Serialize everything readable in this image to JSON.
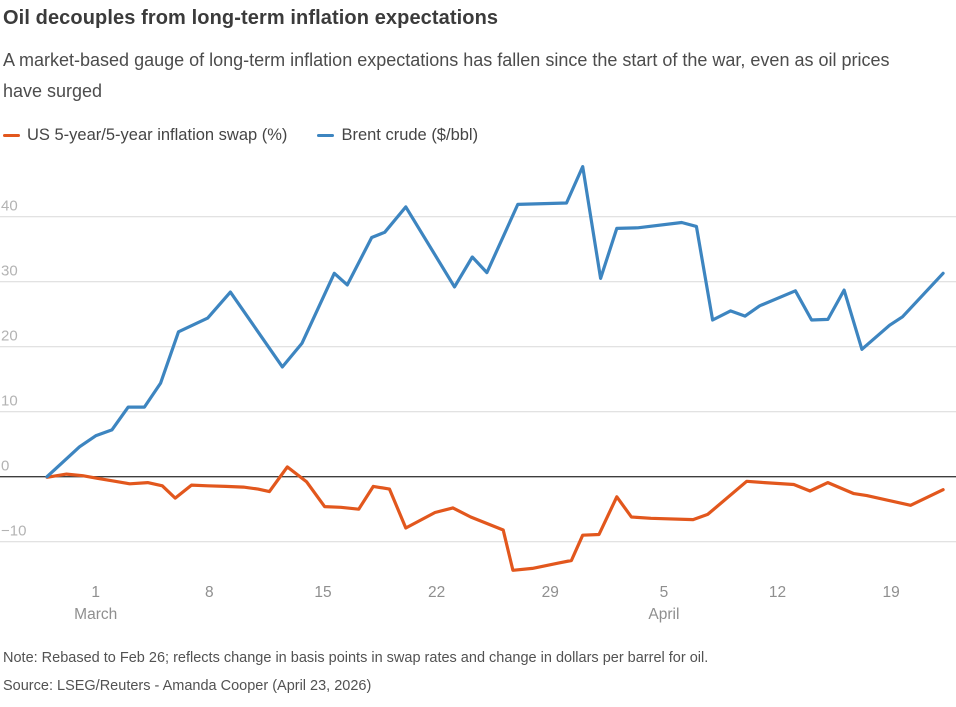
{
  "header": {
    "title": "Oil decouples from long-term inflation expectations",
    "subtitle": "A market-based gauge of long-term inflation expectations has fallen since the start of the war, even as oil prices have surged"
  },
  "legend": [
    {
      "label": "US 5-year/5-year inflation swap (%)",
      "color": "#e2571d"
    },
    {
      "label": "Brent crude ($/bbl)",
      "color": "#3d85c0"
    }
  ],
  "chart_data": {
    "type": "line",
    "title": "Oil decouples from long-term inflation expectations",
    "x_unit": "days since Feb 26 rebase date",
    "x_axis": {
      "ticks": [
        {
          "day": 3,
          "label": "1"
        },
        {
          "day": 10,
          "label": "8"
        },
        {
          "day": 17,
          "label": "15"
        },
        {
          "day": 24,
          "label": "22"
        },
        {
          "day": 31,
          "label": "29"
        },
        {
          "day": 38,
          "label": "5"
        },
        {
          "day": 45,
          "label": "12"
        },
        {
          "day": 52,
          "label": "19"
        }
      ],
      "month_labels": [
        {
          "day": 3,
          "label": "March"
        },
        {
          "day": 38,
          "label": "April"
        }
      ]
    },
    "y_axis": {
      "ticks": [
        {
          "value": 40,
          "label": "40"
        },
        {
          "value": 30,
          "label": "30"
        },
        {
          "value": 20,
          "label": "20"
        },
        {
          "value": 10,
          "label": "10"
        },
        {
          "value": 0,
          "label": "0"
        },
        {
          "value": -10,
          "label": "−10"
        }
      ],
      "range": [
        -15.5,
        48.5
      ],
      "grid": true,
      "zero_line": true
    },
    "series": [
      {
        "name": "US 5-year/5-year inflation swap (%)",
        "color": "#e2571d",
        "points": [
          [
            0,
            -0.1
          ],
          [
            1.2,
            0.4
          ],
          [
            2.2,
            0.15
          ],
          [
            3.1,
            -0.25
          ],
          [
            4.2,
            -0.7
          ],
          [
            5.1,
            -1.1
          ],
          [
            6.2,
            -0.9
          ],
          [
            7.1,
            -1.4
          ],
          [
            7.9,
            -3.3
          ],
          [
            8.9,
            -1.3
          ],
          [
            9.9,
            -1.4
          ],
          [
            11,
            -1.5
          ],
          [
            12.1,
            -1.6
          ],
          [
            13,
            -1.9
          ],
          [
            13.7,
            -2.3
          ],
          [
            14.8,
            1.5
          ],
          [
            16,
            -0.8
          ],
          [
            17.1,
            -4.6
          ],
          [
            18.1,
            -4.7
          ],
          [
            19.2,
            -5.0
          ],
          [
            20.1,
            -1.5
          ],
          [
            21.1,
            -1.9
          ],
          [
            22.1,
            -7.9
          ],
          [
            23.9,
            -5.5
          ],
          [
            25,
            -4.8
          ],
          [
            26.1,
            -6.2
          ],
          [
            28.1,
            -8.2
          ],
          [
            28.7,
            -14.4
          ],
          [
            29.9,
            -14.1
          ],
          [
            31.5,
            -13.3
          ],
          [
            32.3,
            -12.9
          ],
          [
            33,
            -9.0
          ],
          [
            34,
            -8.9
          ],
          [
            35.1,
            -3.1
          ],
          [
            36,
            -6.2
          ],
          [
            37.2,
            -6.4
          ],
          [
            39.8,
            -6.6
          ],
          [
            40.7,
            -5.8
          ],
          [
            43.1,
            -0.7
          ],
          [
            44.2,
            -0.9
          ],
          [
            46,
            -1.2
          ],
          [
            47,
            -2.2
          ],
          [
            48.1,
            -0.9
          ],
          [
            49.7,
            -2.6
          ],
          [
            50.5,
            -2.9
          ],
          [
            53.2,
            -4.4
          ],
          [
            55.2,
            -2.0
          ]
        ]
      },
      {
        "name": "Brent crude ($/bbl)",
        "color": "#3d85c0",
        "points": [
          [
            0,
            0.0
          ],
          [
            1,
            2.3
          ],
          [
            2,
            4.6
          ],
          [
            3,
            6.3
          ],
          [
            4,
            7.2
          ],
          [
            5,
            10.7
          ],
          [
            6,
            10.7
          ],
          [
            7,
            14.4
          ],
          [
            8.1,
            22.3
          ],
          [
            9.9,
            24.4
          ],
          [
            11.3,
            28.4
          ],
          [
            14.5,
            16.9
          ],
          [
            15.7,
            20.5
          ],
          [
            17.7,
            31.3
          ],
          [
            18.5,
            29.5
          ],
          [
            20,
            36.8
          ],
          [
            20.8,
            37.6
          ],
          [
            22.1,
            41.5
          ],
          [
            25.1,
            29.2
          ],
          [
            26.2,
            33.8
          ],
          [
            27.1,
            31.4
          ],
          [
            29,
            41.9
          ],
          [
            32,
            42.1
          ],
          [
            33,
            47.7
          ],
          [
            34.1,
            30.5
          ],
          [
            35.1,
            38.2
          ],
          [
            36.4,
            38.3
          ],
          [
            39.1,
            39.1
          ],
          [
            40,
            38.5
          ],
          [
            41,
            24.1
          ],
          [
            42.1,
            25.5
          ],
          [
            43,
            24.7
          ],
          [
            43.9,
            26.3
          ],
          [
            46.1,
            28.6
          ],
          [
            47.1,
            24.1
          ],
          [
            48.1,
            24.2
          ],
          [
            49.1,
            28.7
          ],
          [
            50.2,
            19.6
          ],
          [
            51.9,
            23.3
          ],
          [
            52.7,
            24.6
          ],
          [
            55.2,
            31.3
          ]
        ]
      }
    ],
    "legend_position": "top-left",
    "colors": {
      "grid": "#d9d9d9",
      "zero_line": "#3e3e3e",
      "y_tick_text": "#b3b3b3",
      "x_tick_text": "#8f8f8f"
    }
  },
  "footer": {
    "note": "Note: Rebased to Feb 26; reflects change in basis points in swap rates and change in dollars per barrel for oil.",
    "source": "Source: LSEG/Reuters - Amanda Cooper (April 23, 2026)"
  }
}
